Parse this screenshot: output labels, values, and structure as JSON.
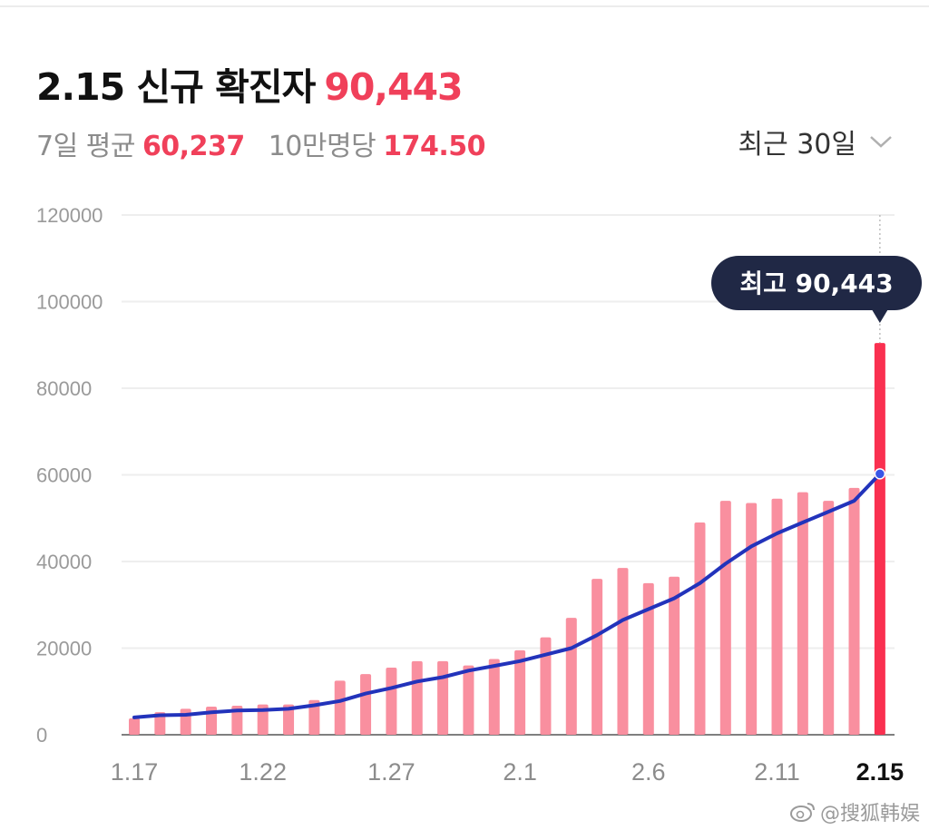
{
  "header": {
    "title_label": "2.15 신규 확진자",
    "title_value": "90,443",
    "avg_label": "7일 평균",
    "avg_value": "60,237",
    "per100k_label": "10만명당",
    "per100k_value": "174.50",
    "period_label": "최근 30일",
    "period_icon": "chevron-down-icon"
  },
  "tooltip": {
    "text": "최고 90,443"
  },
  "watermark": {
    "text": "@搜狐韩娱",
    "icon": "weibo-icon"
  },
  "colors": {
    "bar": "#f98f9f",
    "bar_highlight": "#fa3050",
    "line": "#2233bb",
    "accent": "#f0405a",
    "tooltip_bg": "#202845",
    "grid": "#eeeeee"
  },
  "chart_data": {
    "type": "bar",
    "title": "2.15 신규 확진자",
    "ylim": [
      0,
      120000
    ],
    "y_ticks": [
      "0",
      "20000",
      "40000",
      "60000",
      "80000",
      "100000",
      "120000"
    ],
    "x_ticks": [
      {
        "index": 0,
        "label": "1.17"
      },
      {
        "index": 5,
        "label": "1.22"
      },
      {
        "index": 10,
        "label": "1.27"
      },
      {
        "index": 15,
        "label": "2.1"
      },
      {
        "index": 20,
        "label": "2.6"
      },
      {
        "index": 25,
        "label": "2.11"
      },
      {
        "index": 29,
        "label": "2.15"
      }
    ],
    "highlight_index": 29,
    "grid": true,
    "categories": [
      "1.17",
      "1.18",
      "1.19",
      "1.20",
      "1.21",
      "1.22",
      "1.23",
      "1.24",
      "1.25",
      "1.26",
      "1.27",
      "1.28",
      "1.29",
      "1.30",
      "1.31",
      "2.1",
      "2.2",
      "2.3",
      "2.4",
      "2.5",
      "2.6",
      "2.7",
      "2.8",
      "2.9",
      "2.10",
      "2.11",
      "2.12",
      "2.13",
      "2.14",
      "2.15"
    ],
    "series": [
      {
        "type": "bar",
        "values": [
          3800,
          5200,
          6000,
          6500,
          6700,
          7000,
          7000,
          8000,
          12500,
          14000,
          15500,
          17000,
          17000,
          16000,
          17500,
          19500,
          22500,
          27000,
          36000,
          38500,
          35000,
          36500,
          49000,
          54000,
          53500,
          54500,
          56000,
          54000,
          57000,
          90443
        ]
      },
      {
        "type": "line",
        "values": [
          4000,
          4500,
          4600,
          5200,
          5600,
          5700,
          6000,
          6800,
          7800,
          9500,
          10800,
          12300,
          13300,
          14800,
          15900,
          17000,
          18500,
          20000,
          23000,
          26500,
          29000,
          31500,
          35000,
          39500,
          43500,
          46500,
          49000,
          51500,
          54000,
          60237
        ]
      }
    ]
  }
}
